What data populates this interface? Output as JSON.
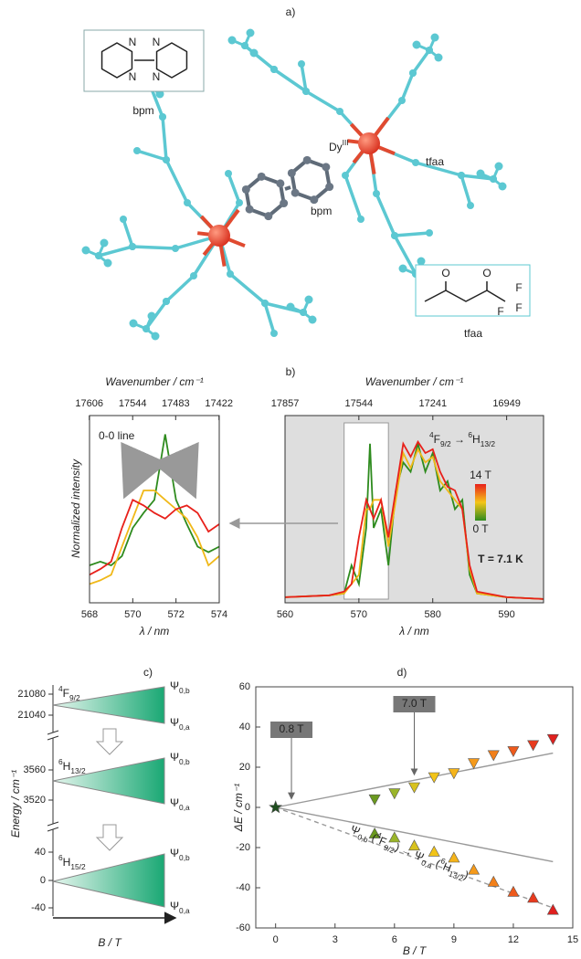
{
  "panel_labels": [
    "a)",
    "b)",
    "c)",
    "d)"
  ],
  "molecule": {
    "dy": "Dy",
    "dy_sup": "III",
    "bpm": "bpm",
    "tfaa": "tfaa"
  },
  "insets": {
    "bpm": {
      "label": "bpm",
      "atoms": [
        "N",
        "N",
        "N",
        "N"
      ]
    },
    "tfaa": {
      "label": "tfaa",
      "atoms": [
        "O",
        "O",
        "F",
        "F",
        "F"
      ]
    }
  },
  "level_diagram": {
    "ylabel": "Energy / cm⁻¹",
    "xlabel": "B / T",
    "yticks": [
      21080,
      21040,
      3560,
      3520,
      40,
      0,
      -40
    ],
    "levels": [
      {
        "mult": "4",
        "term": "F",
        "j": "9/2"
      },
      {
        "mult": "6",
        "term": "H",
        "j": "13/2"
      },
      {
        "mult": "6",
        "term": "H",
        "j": "15/2"
      }
    ],
    "states": [
      {
        "symbol": "Ψ",
        "sub": "0,b"
      },
      {
        "symbol": "Ψ",
        "sub": "0,a"
      }
    ]
  },
  "chart_data": [
    {
      "type": "line",
      "ylabel": "Normalized intensity",
      "xlabel": "λ / nm",
      "x2label": "Wavenumber / cm⁻¹",
      "annotation": "0-0 line",
      "x": [
        568,
        568.5,
        569,
        569.5,
        570,
        570.5,
        571,
        571.5,
        572,
        572.5,
        573,
        573.5,
        574
      ],
      "xlim": [
        568,
        574
      ],
      "xticks": [
        568,
        570,
        572,
        574
      ],
      "x2ticks": [
        17606,
        17544,
        17483,
        17422
      ],
      "ylim": [
        0,
        1
      ],
      "series": [
        {
          "color": "#2e8b1e",
          "values": [
            0.2,
            0.22,
            0.2,
            0.25,
            0.4,
            0.48,
            0.55,
            0.9,
            0.55,
            0.42,
            0.3,
            0.27,
            0.3
          ]
        },
        {
          "color": "#f0b818",
          "values": [
            0.1,
            0.12,
            0.15,
            0.3,
            0.45,
            0.6,
            0.6,
            0.55,
            0.5,
            0.45,
            0.35,
            0.2,
            0.25
          ]
        },
        {
          "color": "#e8201a",
          "values": [
            0.15,
            0.18,
            0.22,
            0.4,
            0.55,
            0.52,
            0.48,
            0.45,
            0.5,
            0.52,
            0.48,
            0.38,
            0.42
          ]
        }
      ]
    },
    {
      "type": "line",
      "xlabel": "λ / nm",
      "x2label": "Wavenumber / cm⁻¹",
      "x": [
        560,
        566,
        568,
        569,
        570,
        571,
        571.5,
        572,
        573,
        574,
        575,
        576,
        577,
        578,
        579,
        580,
        581,
        582,
        583,
        584,
        585,
        586,
        590,
        595
      ],
      "xlim": [
        560,
        595
      ],
      "xticks": [
        560,
        570,
        580,
        590
      ],
      "x2ticks": [
        17857,
        17544,
        17241,
        16949
      ],
      "ylim": [
        0,
        1
      ],
      "background": "#dedede",
      "highlight_xlim": [
        568,
        574
      ],
      "transition": {
        "from": {
          "mult": "4",
          "term": "F",
          "j": "9/2"
        },
        "arrow": " → ",
        "to": {
          "mult": "6",
          "term": "H",
          "j": "13/2"
        }
      },
      "colorbar": {
        "top": "14 T",
        "bottom": "0 T",
        "colors": [
          "#e8201a",
          "#f5c518",
          "#2e8b1e"
        ]
      },
      "temperature": "T = 7.1 K",
      "series": [
        {
          "color": "#2e8b1e",
          "values": [
            0.03,
            0.04,
            0.05,
            0.2,
            0.1,
            0.4,
            0.85,
            0.4,
            0.5,
            0.2,
            0.6,
            0.75,
            0.7,
            0.85,
            0.7,
            0.8,
            0.6,
            0.65,
            0.5,
            0.55,
            0.15,
            0.05,
            0.03,
            0.02
          ]
        },
        {
          "color": "#f0b818",
          "values": [
            0.03,
            0.04,
            0.05,
            0.1,
            0.15,
            0.5,
            0.5,
            0.55,
            0.55,
            0.3,
            0.55,
            0.8,
            0.72,
            0.82,
            0.75,
            0.78,
            0.65,
            0.6,
            0.55,
            0.5,
            0.18,
            0.05,
            0.03,
            0.02
          ]
        },
        {
          "color": "#e8201a",
          "values": [
            0.03,
            0.04,
            0.06,
            0.1,
            0.35,
            0.55,
            0.5,
            0.45,
            0.55,
            0.35,
            0.6,
            0.85,
            0.78,
            0.86,
            0.8,
            0.82,
            0.7,
            0.62,
            0.6,
            0.5,
            0.2,
            0.06,
            0.03,
            0.02
          ]
        }
      ]
    },
    {
      "type": "scatter",
      "ylabel": "ΔE / cm⁻¹",
      "xlabel": "B / T",
      "xlim": [
        -1,
        15
      ],
      "xticks": [
        0,
        3,
        6,
        9,
        12,
        15
      ],
      "ylim": [
        -60,
        60
      ],
      "yticks": [
        -60,
        -40,
        -20,
        0,
        20,
        40,
        60
      ],
      "series": [
        {
          "marker": "star",
          "color": "#1f4d1f",
          "x": [
            0
          ],
          "values": [
            0
          ]
        },
        {
          "marker": "triangle-down",
          "x": [
            5,
            6,
            7,
            8,
            9,
            10,
            11,
            12,
            13,
            14
          ],
          "values": [
            4,
            7,
            10,
            15,
            17,
            22,
            26,
            28,
            31,
            34
          ],
          "colors": [
            "#6a9a1e",
            "#9ab52a",
            "#d8c21e",
            "#f2c418",
            "#f5b41a",
            "#f59a1a",
            "#f2801a",
            "#ee5a1c",
            "#e83a1e",
            "#e0201e"
          ]
        },
        {
          "marker": "triangle-up",
          "x": [
            5,
            6,
            7,
            8,
            9,
            10,
            11,
            12,
            13,
            14
          ],
          "values": [
            -13,
            -15,
            -19,
            -22,
            -25,
            -31,
            -37,
            -42,
            -45,
            -51
          ],
          "colors": [
            "#6a9a1e",
            "#9ab52a",
            "#d8c21e",
            "#f2c418",
            "#f5b41a",
            "#f59a1a",
            "#f2801a",
            "#ee5a1c",
            "#e83a1e",
            "#e0201e"
          ]
        }
      ],
      "lines": [
        {
          "x": [
            0,
            14
          ],
          "y": [
            0,
            27
          ],
          "style": "solid"
        },
        {
          "x": [
            0,
            14
          ],
          "y": [
            0,
            -27
          ],
          "style": "solid"
        },
        {
          "x": [
            0,
            14
          ],
          "y": [
            0,
            -50
          ],
          "style": "dashed"
        }
      ],
      "annotations": [
        {
          "text": "0.8 T",
          "x": 0.8
        },
        {
          "text": "7.0 T",
          "x": 7
        }
      ],
      "transition_label": [
        {
          "text": "Ψ"
        },
        {
          "sub": "0,b"
        },
        {
          "text": " ("
        },
        {
          "sup": "4"
        },
        {
          "text": "F"
        },
        {
          "sub": "9/2"
        },
        {
          "text": ") → Ψ"
        },
        {
          "sub": "0,a"
        },
        {
          "text": " ("
        },
        {
          "sup": "6"
        },
        {
          "text": "H"
        },
        {
          "sub": "13/2"
        },
        {
          "text": ")"
        }
      ]
    }
  ]
}
